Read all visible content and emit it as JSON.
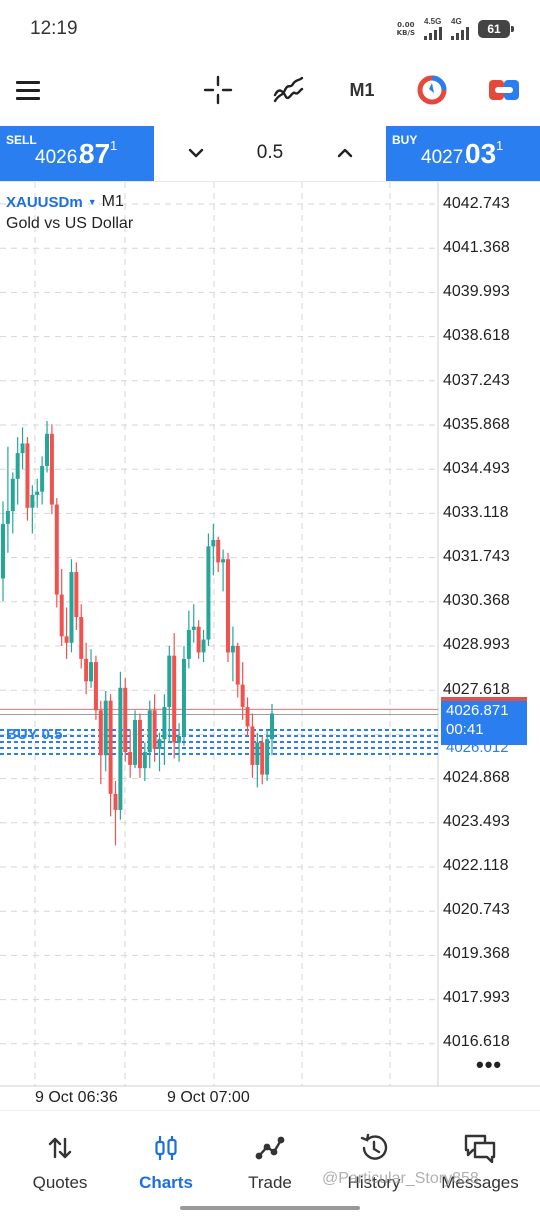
{
  "status_bar": {
    "time": "12:19",
    "net_speed_value": "0.00",
    "net_speed_unit": "KB/S",
    "network_a": "4.5G",
    "network_b": "4G",
    "battery": "61"
  },
  "toolbar": {
    "timeframe": "M1",
    "icons": [
      "menu-icon",
      "crosshair-icon",
      "indicators-icon",
      "orders-icon",
      "trade-icon"
    ]
  },
  "trade_panel": {
    "sell_label": "SELL",
    "sell_price_small": "4026.",
    "sell_price_big": "87",
    "sell_price_sup": "1",
    "volume": "0.5",
    "buy_label": "BUY",
    "buy_price_small": "4027.",
    "buy_price_big": "03",
    "buy_price_sup": "1"
  },
  "chart": {
    "symbol": "XAUUSDm",
    "timeframe": "M1",
    "description": "Gold vs US Dollar",
    "price_labels": [
      "4042.743",
      "4041.368",
      "4039.993",
      "4038.618",
      "4037.243",
      "4035.868",
      "4034.493",
      "4033.118",
      "4031.743",
      "4030.368",
      "4028.993",
      "4027.618",
      "4024.868",
      "4023.493",
      "4022.118",
      "4020.743",
      "4019.368",
      "4017.993",
      "4016.618"
    ],
    "time_labels": [
      "9 Oct 06:36",
      "9 Oct 07:00"
    ],
    "bid_tag_price": "4026.871",
    "bid_tag_timer": "00:41",
    "hidden_tag_price": "4026.012",
    "order_label": "BUY 0.5",
    "more_label": "•••",
    "colors": {
      "bull": "#26a69a",
      "bear": "#ef5350",
      "accent": "#2a7ef0"
    }
  },
  "chart_data": {
    "type": "candlestick",
    "symbol": "XAUUSDm",
    "timeframe": "M1",
    "ylim": [
      4016.0,
      4043.4
    ],
    "candles": [
      {
        "o": 4031.1,
        "h": 4033.5,
        "l": 4030.4,
        "c": 4032.8
      },
      {
        "o": 4032.8,
        "h": 4035.2,
        "l": 4031.9,
        "c": 4033.2
      },
      {
        "o": 4033.2,
        "h": 4034.4,
        "l": 4032.5,
        "c": 4034.2
      },
      {
        "o": 4034.2,
        "h": 4035.5,
        "l": 4033.4,
        "c": 4035.0
      },
      {
        "o": 4035.0,
        "h": 4035.8,
        "l": 4034.5,
        "c": 4035.3
      },
      {
        "o": 4035.3,
        "h": 4035.5,
        "l": 4032.9,
        "c": 4033.3
      },
      {
        "o": 4033.3,
        "h": 4034.0,
        "l": 4032.5,
        "c": 4033.7
      },
      {
        "o": 4033.7,
        "h": 4034.2,
        "l": 4033.3,
        "c": 4033.8
      },
      {
        "o": 4033.8,
        "h": 4034.9,
        "l": 4033.4,
        "c": 4034.6
      },
      {
        "o": 4034.6,
        "h": 4036.0,
        "l": 4034.4,
        "c": 4035.6
      },
      {
        "o": 4035.6,
        "h": 4035.9,
        "l": 4033.1,
        "c": 4033.4
      },
      {
        "o": 4033.4,
        "h": 4033.6,
        "l": 4030.2,
        "c": 4030.6
      },
      {
        "o": 4030.6,
        "h": 4031.4,
        "l": 4029.0,
        "c": 4029.3
      },
      {
        "o": 4029.3,
        "h": 4030.2,
        "l": 4028.6,
        "c": 4029.1
      },
      {
        "o": 4029.1,
        "h": 4031.7,
        "l": 4028.8,
        "c": 4031.3
      },
      {
        "o": 4031.3,
        "h": 4031.6,
        "l": 4029.5,
        "c": 4029.9
      },
      {
        "o": 4029.9,
        "h": 4030.3,
        "l": 4028.3,
        "c": 4028.6
      },
      {
        "o": 4028.6,
        "h": 4029.1,
        "l": 4027.5,
        "c": 4027.9
      },
      {
        "o": 4027.9,
        "h": 4028.9,
        "l": 4027.7,
        "c": 4028.5
      },
      {
        "o": 4028.5,
        "h": 4028.7,
        "l": 4026.7,
        "c": 4027.0
      },
      {
        "o": 4027.0,
        "h": 4027.3,
        "l": 4024.7,
        "c": 4025.6
      },
      {
        "o": 4025.6,
        "h": 4027.6,
        "l": 4025.1,
        "c": 4027.3
      },
      {
        "o": 4027.3,
        "h": 4027.5,
        "l": 4023.7,
        "c": 4024.4
      },
      {
        "o": 4024.4,
        "h": 4024.8,
        "l": 4022.8,
        "c": 4023.9
      },
      {
        "o": 4023.9,
        "h": 4028.2,
        "l": 4023.6,
        "c": 4027.7
      },
      {
        "o": 4027.7,
        "h": 4028.0,
        "l": 4025.4,
        "c": 4025.7
      },
      {
        "o": 4025.7,
        "h": 4026.4,
        "l": 4024.9,
        "c": 4025.3
      },
      {
        "o": 4025.3,
        "h": 4027.0,
        "l": 4025.2,
        "c": 4026.7
      },
      {
        "o": 4026.7,
        "h": 4026.9,
        "l": 4024.9,
        "c": 4025.2
      },
      {
        "o": 4025.2,
        "h": 4026.0,
        "l": 4024.8,
        "c": 4025.7
      },
      {
        "o": 4025.7,
        "h": 4027.3,
        "l": 4025.2,
        "c": 4027.0
      },
      {
        "o": 4027.0,
        "h": 4027.5,
        "l": 4025.4,
        "c": 4025.8
      },
      {
        "o": 4025.8,
        "h": 4026.3,
        "l": 4025.1,
        "c": 4026.1
      },
      {
        "o": 4026.1,
        "h": 4027.5,
        "l": 4025.3,
        "c": 4027.1
      },
      {
        "o": 4027.1,
        "h": 4029.0,
        "l": 4026.0,
        "c": 4028.7
      },
      {
        "o": 4028.7,
        "h": 4029.4,
        "l": 4025.5,
        "c": 4026.0
      },
      {
        "o": 4026.0,
        "h": 4026.6,
        "l": 4025.4,
        "c": 4026.2
      },
      {
        "o": 4026.2,
        "h": 4029.0,
        "l": 4025.9,
        "c": 4028.6
      },
      {
        "o": 4028.6,
        "h": 4030.1,
        "l": 4028.3,
        "c": 4029.5
      },
      {
        "o": 4029.5,
        "h": 4030.3,
        "l": 4029.1,
        "c": 4029.6
      },
      {
        "o": 4029.6,
        "h": 4029.8,
        "l": 4028.6,
        "c": 4028.8
      },
      {
        "o": 4028.8,
        "h": 4029.5,
        "l": 4028.5,
        "c": 4029.2
      },
      {
        "o": 4029.2,
        "h": 4032.5,
        "l": 4029.0,
        "c": 4032.1
      },
      {
        "o": 4032.1,
        "h": 4032.8,
        "l": 4031.2,
        "c": 4032.3
      },
      {
        "o": 4032.3,
        "h": 4032.4,
        "l": 4031.3,
        "c": 4031.6
      },
      {
        "o": 4031.6,
        "h": 4032.0,
        "l": 4030.7,
        "c": 4031.7
      },
      {
        "o": 4031.7,
        "h": 4031.9,
        "l": 4028.5,
        "c": 4028.8
      },
      {
        "o": 4028.8,
        "h": 4029.6,
        "l": 4027.9,
        "c": 4029.0
      },
      {
        "o": 4029.0,
        "h": 4029.1,
        "l": 4027.4,
        "c": 4027.8
      },
      {
        "o": 4027.8,
        "h": 4028.5,
        "l": 4026.7,
        "c": 4027.1
      },
      {
        "o": 4027.1,
        "h": 4027.4,
        "l": 4026.2,
        "c": 4026.5
      },
      {
        "o": 4026.5,
        "h": 4026.9,
        "l": 4024.9,
        "c": 4025.3
      },
      {
        "o": 4025.3,
        "h": 4026.3,
        "l": 4024.6,
        "c": 4026.0
      },
      {
        "o": 4026.0,
        "h": 4026.2,
        "l": 4024.7,
        "c": 4025.0
      },
      {
        "o": 4025.0,
        "h": 4026.4,
        "l": 4024.8,
        "c": 4026.1
      },
      {
        "o": 4026.1,
        "h": 4027.2,
        "l": 4025.6,
        "c": 4026.9
      }
    ],
    "ask_line": 4027.03,
    "bid_line": 4026.871,
    "order_line": 4026.012,
    "y_tick_labels": [
      "4042.743",
      "4041.368",
      "4039.993",
      "4038.618",
      "4037.243",
      "4035.868",
      "4034.493",
      "4033.118",
      "4031.743",
      "4030.368",
      "4028.993",
      "4027.618",
      "4024.868",
      "4023.493",
      "4022.118",
      "4020.743",
      "4019.368",
      "4017.993",
      "4016.618"
    ],
    "x_tick_labels": [
      "9 Oct 06:36",
      "9 Oct 07:00"
    ],
    "grid": true
  },
  "bottom_nav": {
    "items": [
      {
        "label": "Quotes",
        "icon": "quotes-icon",
        "active": false
      },
      {
        "label": "Charts",
        "icon": "charts-icon",
        "active": true
      },
      {
        "label": "Trade",
        "icon": "trade-icon",
        "active": false
      },
      {
        "label": "History",
        "icon": "history-icon",
        "active": false
      },
      {
        "label": "Messages",
        "icon": "messages-icon",
        "active": false
      }
    ]
  },
  "watermark": "@Particular_Story858"
}
